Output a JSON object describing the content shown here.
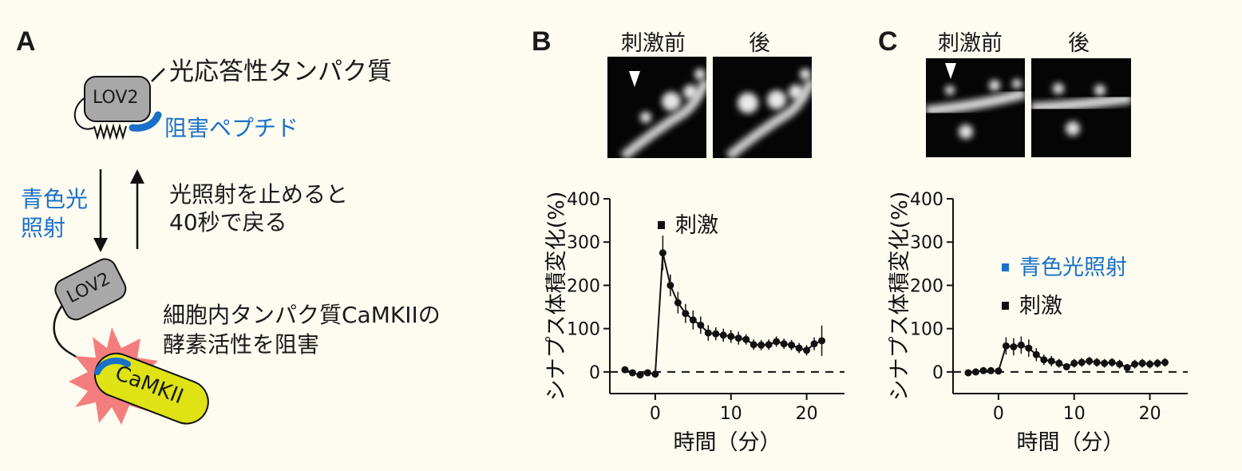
{
  "panel_a": {
    "label": "A",
    "protein_title": "光応答性タンパク質",
    "lov2_top": "LOV2",
    "peptide_label": "阻害ペプチド",
    "blue_light": [
      "青色光",
      "照射"
    ],
    "recovery": [
      "光照射を止めると",
      "40秒で戻る"
    ],
    "lov2_bottom": "LOV2",
    "effect": [
      "細胞内タンパク質CaMKIIの",
      "酵素活性を阻害"
    ],
    "camkii": "CaMKII",
    "colors": {
      "blue": "#1a70c8",
      "lov2_gray": "#a8a8a8",
      "camkii_yellow": "#dfe314",
      "burst": "#f47e7e"
    }
  },
  "panel_b": {
    "label": "B",
    "before": "刺激前",
    "after": "後"
  },
  "panel_c": {
    "label": "C",
    "before": "刺激前",
    "after": "後"
  },
  "chart_data": [
    {
      "type": "line",
      "panel": "B",
      "ylabel": "シナプス体積変化(%)",
      "xlabel": "時間（分）",
      "ylim": [
        -50,
        400
      ],
      "xlim": [
        -6,
        25
      ],
      "yticks": [
        0,
        100,
        200,
        300,
        400
      ],
      "xticks": [
        0,
        10,
        20
      ],
      "baseline": 0,
      "legend": [
        {
          "label": "刺激",
          "color": "#111111"
        }
      ],
      "series": [
        {
          "x": [
            -4,
            -3,
            -2,
            -1,
            0,
            1,
            2,
            3,
            4,
            5,
            6,
            7,
            8,
            9,
            10,
            11,
            12,
            13,
            14,
            15,
            16,
            17,
            18,
            19,
            20,
            21,
            22
          ],
          "y": [
            5,
            -2,
            -7,
            -2,
            -5,
            275,
            200,
            160,
            135,
            120,
            108,
            90,
            88,
            85,
            82,
            78,
            75,
            63,
            62,
            63,
            70,
            65,
            62,
            55,
            50,
            65,
            72
          ],
          "err": [
            0,
            0,
            0,
            0,
            0,
            40,
            25,
            25,
            22,
            22,
            20,
            18,
            15,
            15,
            15,
            15,
            12,
            12,
            12,
            12,
            12,
            12,
            12,
            12,
            12,
            15,
            35
          ]
        }
      ]
    },
    {
      "type": "line",
      "panel": "C",
      "ylabel": "シナプス体積変化(%)",
      "xlabel": "時間（分）",
      "ylim": [
        -50,
        400
      ],
      "xlim": [
        -6,
        25
      ],
      "yticks": [
        0,
        100,
        200,
        300,
        400
      ],
      "xticks": [
        0,
        10,
        20
      ],
      "baseline": 0,
      "legend": [
        {
          "label": "青色光照射",
          "color": "#1a70c8"
        },
        {
          "label": "刺激",
          "color": "#111111"
        }
      ],
      "series": [
        {
          "x": [
            -4,
            -3,
            -2,
            -1,
            0,
            1,
            2,
            3,
            4,
            5,
            6,
            7,
            8,
            9,
            10,
            11,
            12,
            13,
            14,
            15,
            16,
            17,
            18,
            19,
            20,
            21,
            22
          ],
          "y": [
            -2,
            0,
            3,
            3,
            2,
            60,
            58,
            62,
            55,
            40,
            28,
            25,
            20,
            12,
            20,
            22,
            25,
            22,
            20,
            22,
            18,
            10,
            18,
            20,
            18,
            20,
            22
          ],
          "err": [
            0,
            0,
            0,
            0,
            0,
            20,
            20,
            20,
            20,
            15,
            12,
            12,
            10,
            8,
            10,
            10,
            10,
            10,
            10,
            10,
            10,
            8,
            10,
            10,
            10,
            10,
            10
          ]
        }
      ]
    }
  ]
}
